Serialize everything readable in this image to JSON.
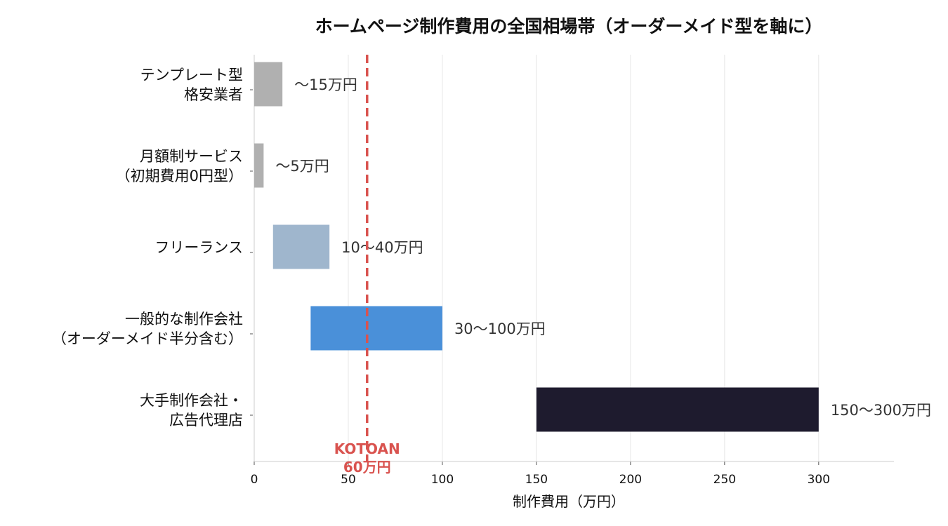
{
  "chart_data": {
    "type": "bar",
    "orientation": "horizontal",
    "title": "ホームページ制作費用の全国相場帯（オーダーメイド型を軸に）",
    "xlabel": "制作費用（万円）",
    "xlim": [
      0,
      340
    ],
    "xticks": [
      0,
      50,
      100,
      150,
      200,
      250,
      300
    ],
    "grid": "vertical",
    "categories": [
      [
        "テンプレート型",
        "格安業者"
      ],
      [
        "月額制サービス",
        "（初期費用0円型）"
      ],
      [
        "フリーランス"
      ],
      [
        "一般的な制作会社",
        "（オーダーメイド半分含む）"
      ],
      [
        "大手制作会社・",
        "広告代理店"
      ]
    ],
    "ranges": [
      {
        "start": 0,
        "end": 15,
        "label": "〜15万円",
        "color": "#b0b0b0"
      },
      {
        "start": 0,
        "end": 5,
        "label": "〜5万円",
        "color": "#b0b0b0"
      },
      {
        "start": 10,
        "end": 40,
        "label": "10〜40万円",
        "color": "#9fb6cd"
      },
      {
        "start": 30,
        "end": 100,
        "label": "30〜100万円",
        "color": "#4a90d9"
      },
      {
        "start": 150,
        "end": 300,
        "label": "150〜300万円",
        "color": "#1e1b2e"
      }
    ],
    "reference_line": {
      "value": 60,
      "label": [
        "KOTOAN",
        "60万円"
      ],
      "color": "#d9534f",
      "style": "dashed"
    }
  }
}
